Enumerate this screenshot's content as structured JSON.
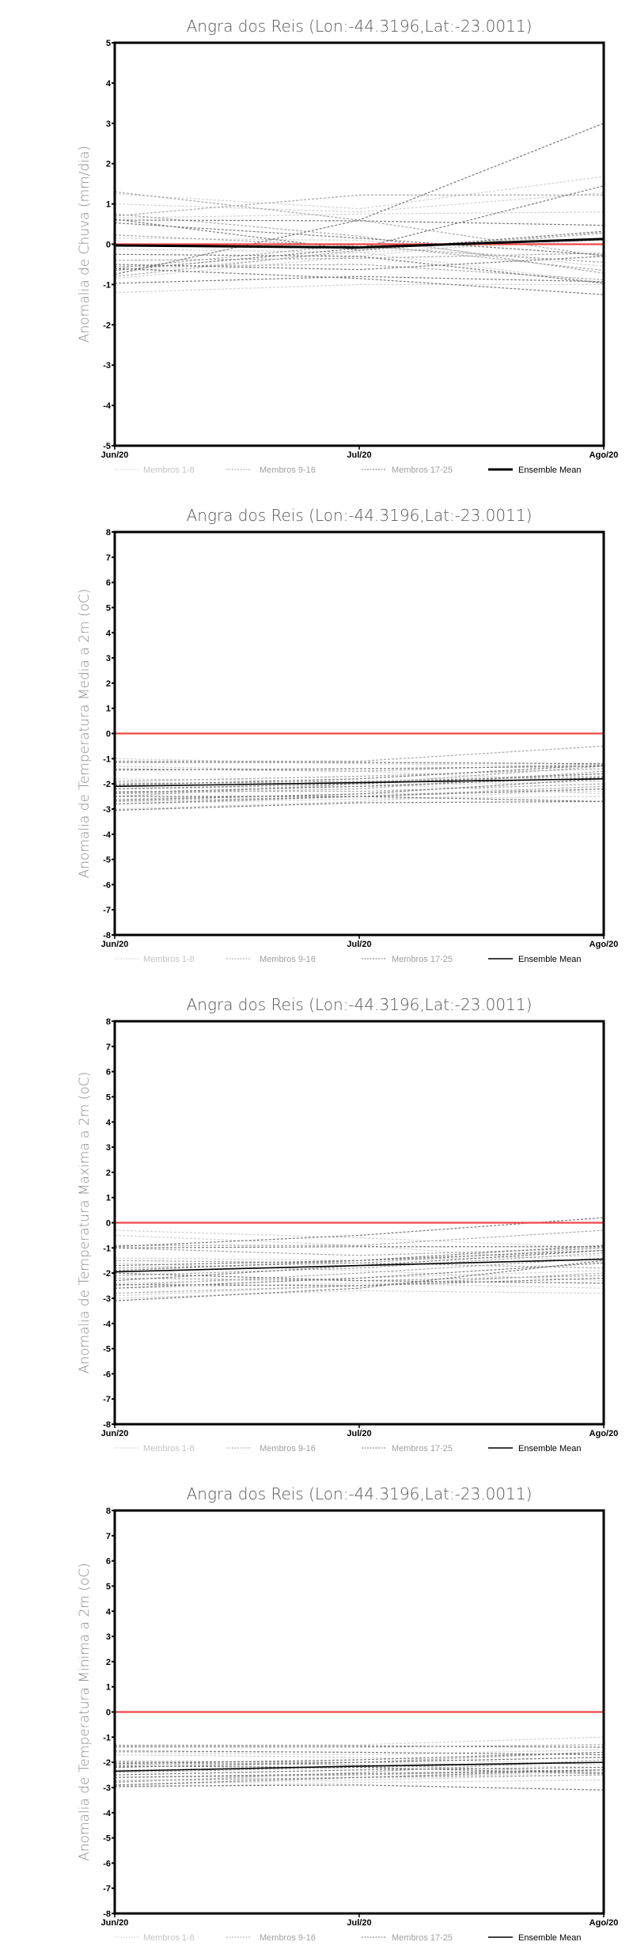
{
  "colors": {
    "members_1_8": "#d2d2d2",
    "members_9_16": "#a8a8a8",
    "members_17_25": "#7a7a7a",
    "mean": "#000000",
    "zero_line": "#f04848"
  },
  "legend": {
    "g1": "Membros 1-8",
    "g2": "Membros 9-16",
    "g3": "Membros 17-25",
    "mean": "Ensemble Mean"
  },
  "chart_data": [
    {
      "type": "line",
      "title": "Angra dos Reis (Lon:-44.3196,Lat:-23.0011)",
      "ylabel": "Anomalia de Chuva (mm/dia)",
      "xlabel": "",
      "categories": [
        "Jun/20",
        "Jul/20",
        "Ago/20"
      ],
      "ylim": [
        -5,
        5
      ],
      "yticks": [
        "5",
        "4",
        "3",
        "2",
        "1",
        "0",
        "-1",
        "-2",
        "-3",
        "-4",
        "-5"
      ],
      "mean_width": "thick",
      "members": [
        [
          1.25,
          0.88,
          1.68
        ],
        [
          1.0,
          0.8,
          1.28
        ],
        [
          0.65,
          0.75,
          0.8
        ],
        [
          -0.12,
          -0.2,
          -0.95
        ],
        [
          -0.85,
          -0.3,
          0.3
        ],
        [
          -1.2,
          -1.0,
          -1.0
        ],
        [
          0.15,
          0.1,
          -0.55
        ],
        [
          -0.7,
          -0.2,
          0.1
        ],
        [
          1.3,
          0.6,
          -0.3
        ],
        [
          0.7,
          1.22,
          1.22
        ],
        [
          0.75,
          0.2,
          -0.72
        ],
        [
          -0.4,
          -0.35,
          -0.22
        ],
        [
          -0.6,
          0.0,
          -0.65
        ],
        [
          0.23,
          -0.05,
          -0.45
        ],
        [
          -0.55,
          -0.5,
          -0.88
        ],
        [
          -0.8,
          -0.15,
          0.27
        ],
        [
          -0.75,
          0.6,
          3.0
        ],
        [
          -0.65,
          -0.1,
          1.45
        ],
        [
          0.6,
          0.58,
          0.47
        ],
        [
          0.53,
          0.15,
          -0.27
        ],
        [
          -0.25,
          -0.3,
          -0.97
        ],
        [
          -0.5,
          -0.63,
          -0.3
        ],
        [
          -0.97,
          -0.8,
          -0.93
        ],
        [
          -0.6,
          -0.85,
          -1.25
        ],
        [
          0.62,
          -0.15,
          0.32
        ]
      ],
      "mean": [
        -0.03,
        -0.08,
        0.13
      ]
    },
    {
      "type": "line",
      "title": "Angra dos Reis (Lon:-44.3196,Lat:-23.0011)",
      "ylabel": "Anomalia de Temperatura Media a 2m (oC)",
      "xlabel": "",
      "categories": [
        "Jun/20",
        "Jul/20",
        "Ago/20"
      ],
      "ylim": [
        -8,
        8
      ],
      "yticks": [
        "8",
        "7",
        "6",
        "5",
        "4",
        "3",
        "2",
        "1",
        "0",
        "-1",
        "-2",
        "-3",
        "-4",
        "-5",
        "-6",
        "-7",
        "-8"
      ],
      "mean_width": "thin",
      "members": [
        [
          -1.0,
          -1.2,
          -1.3
        ],
        [
          -1.3,
          -1.5,
          -1.9
        ],
        [
          -1.8,
          -1.9,
          -1.6
        ],
        [
          -2.6,
          -2.4,
          -2.3
        ],
        [
          -2.8,
          -2.6,
          -2.5
        ],
        [
          -2.2,
          -2.1,
          -1.9
        ],
        [
          -3.0,
          -2.7,
          -2.2
        ],
        [
          -1.95,
          -2.0,
          -2.4
        ],
        [
          -1.1,
          -1.1,
          -0.5
        ],
        [
          -1.4,
          -1.5,
          -1.2
        ],
        [
          -2.4,
          -2.2,
          -1.5
        ],
        [
          -2.0,
          -1.9,
          -1.7
        ],
        [
          -2.7,
          -2.5,
          -2.1
        ],
        [
          -1.9,
          -1.7,
          -1.4
        ],
        [
          -2.5,
          -2.0,
          -1.3
        ],
        [
          -2.3,
          -2.3,
          -2.0
        ],
        [
          -1.15,
          -1.15,
          -1.2
        ],
        [
          -1.45,
          -1.4,
          -1.3
        ],
        [
          -2.05,
          -1.8,
          -1.25
        ],
        [
          -2.2,
          -2.0,
          -1.6
        ],
        [
          -2.5,
          -2.5,
          -2.7
        ],
        [
          -2.65,
          -2.4,
          -1.8
        ],
        [
          -3.05,
          -2.75,
          -2.7
        ],
        [
          -2.35,
          -2.1,
          -1.75
        ],
        [
          -2.8,
          -2.5,
          -2.2
        ]
      ],
      "mean": [
        -2.1,
        -1.95,
        -1.8
      ]
    },
    {
      "type": "line",
      "title": "Angra dos Reis (Lon:-44.3196,Lat:-23.0011)",
      "ylabel": "Anomalia de Temperatura Maxima a 2m (oC)",
      "xlabel": "",
      "categories": [
        "Jun/20",
        "Jul/20",
        "Ago/20"
      ],
      "ylim": [
        -8,
        8
      ],
      "yticks": [
        "8",
        "7",
        "6",
        "5",
        "4",
        "3",
        "2",
        "1",
        "0",
        "-1",
        "-2",
        "-3",
        "-4",
        "-5",
        "-6",
        "-7",
        "-8"
      ],
      "mean_width": "thin",
      "members": [
        [
          -0.3,
          -0.6,
          -1.0
        ],
        [
          -0.5,
          -0.9,
          -1.6
        ],
        [
          -1.4,
          -1.5,
          -1.3
        ],
        [
          -2.4,
          -2.2,
          -1.9
        ],
        [
          -2.9,
          -2.5,
          -2.0
        ],
        [
          -1.6,
          -1.9,
          -2.3
        ],
        [
          -2.6,
          -2.4,
          -2.6
        ],
        [
          -3.0,
          -2.7,
          -2.8
        ],
        [
          -0.9,
          -0.9,
          -0.3
        ],
        [
          -1.0,
          -1.3,
          -1.0
        ],
        [
          -1.8,
          -1.6,
          -1.0
        ],
        [
          -2.1,
          -1.8,
          -1.2
        ],
        [
          -2.5,
          -2.0,
          -1.4
        ],
        [
          -2.2,
          -2.3,
          -2.1
        ],
        [
          -2.8,
          -2.5,
          -2.0
        ],
        [
          -1.5,
          -1.6,
          -1.8
        ],
        [
          -0.95,
          -0.5,
          0.2
        ],
        [
          -1.0,
          -0.95,
          -0.95
        ],
        [
          -1.9,
          -1.5,
          -0.9
        ],
        [
          -2.3,
          -1.7,
          -1.1
        ],
        [
          -2.6,
          -2.2,
          -1.6
        ],
        [
          -2.0,
          -2.3,
          -2.4
        ],
        [
          -3.1,
          -2.6,
          -1.5
        ],
        [
          -2.45,
          -2.5,
          -2.2
        ],
        [
          -1.7,
          -1.5,
          -1.1
        ]
      ],
      "mean": [
        -1.95,
        -1.7,
        -1.45
      ]
    },
    {
      "type": "line",
      "title": "Angra dos Reis (Lon:-44.3196,Lat:-23.0011)",
      "ylabel": "Anomalia de Temperatura Minima a 2m (oC)",
      "xlabel": "",
      "categories": [
        "Jun/20",
        "Jul/20",
        "Ago/20"
      ],
      "ylim": [
        -8,
        8
      ],
      "yticks": [
        "8",
        "7",
        "6",
        "5",
        "4",
        "3",
        "2",
        "1",
        "0",
        "-1",
        "-2",
        "-3",
        "-4",
        "-5",
        "-6",
        "-7",
        "-8"
      ],
      "mean_width": "thin",
      "members": [
        [
          -1.3,
          -1.3,
          -1.0
        ],
        [
          -1.7,
          -1.8,
          -2.1
        ],
        [
          -2.7,
          -2.6,
          -2.4
        ],
        [
          -2.9,
          -2.7,
          -2.5
        ],
        [
          -2.3,
          -2.2,
          -2.0
        ],
        [
          -2.0,
          -2.0,
          -2.2
        ],
        [
          -3.0,
          -2.8,
          -2.7
        ],
        [
          -1.6,
          -1.7,
          -1.5
        ],
        [
          -1.4,
          -1.4,
          -1.3
        ],
        [
          -2.1,
          -2.0,
          -1.6
        ],
        [
          -2.6,
          -2.5,
          -2.3
        ],
        [
          -2.8,
          -2.4,
          -1.9
        ],
        [
          -2.0,
          -2.1,
          -2.4
        ],
        [
          -1.95,
          -2.0,
          -1.8
        ],
        [
          -2.75,
          -2.6,
          -2.5
        ],
        [
          -2.4,
          -2.2,
          -2.0
        ],
        [
          -1.35,
          -1.35,
          -1.4
        ],
        [
          -1.55,
          -1.6,
          -1.7
        ],
        [
          -2.05,
          -1.9,
          -1.6
        ],
        [
          -2.2,
          -2.0,
          -1.8
        ],
        [
          -2.5,
          -2.3,
          -2.2
        ],
        [
          -2.9,
          -2.6,
          -2.3
        ],
        [
          -2.95,
          -2.9,
          -3.1
        ],
        [
          -2.15,
          -2.2,
          -2.45
        ],
        [
          -2.6,
          -2.45,
          -2.3
        ]
      ],
      "mean": [
        -2.35,
        -2.15,
        -2.0
      ]
    }
  ]
}
